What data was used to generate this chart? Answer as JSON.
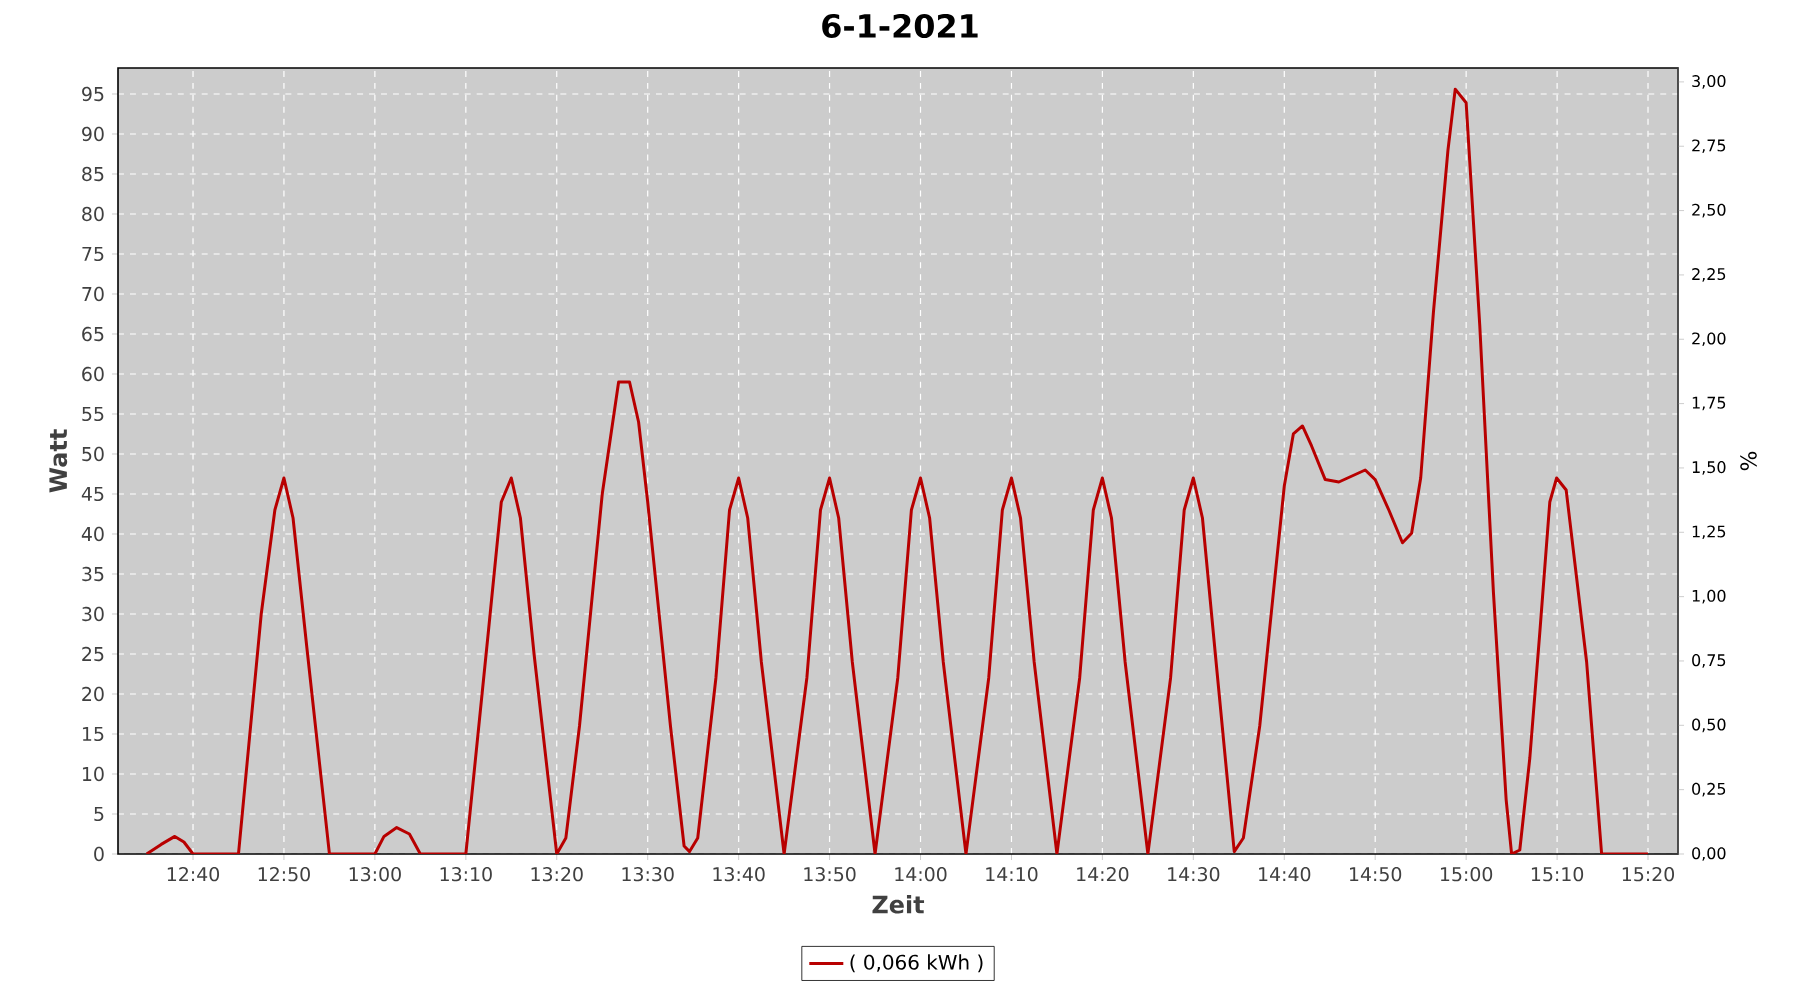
{
  "chart_data": {
    "type": "line",
    "title": "6-1-2021",
    "xlabel": "Zeit",
    "ylabel": "Watt",
    "y2label": "%",
    "x": [
      12.5817,
      12.6083,
      12.6333,
      12.65,
      12.6667,
      12.75,
      12.7917,
      12.8167,
      12.8333,
      12.85,
      12.875,
      12.9167,
      13.0,
      13.0167,
      13.04,
      13.0633,
      13.0833,
      13.1667,
      13.2083,
      13.2317,
      13.25,
      13.2667,
      13.2917,
      13.3333,
      13.35,
      13.375,
      13.4167,
      13.4467,
      13.4667,
      13.4833,
      13.5,
      13.5417,
      13.5667,
      13.5767,
      13.5917,
      13.625,
      13.65,
      13.6667,
      13.6833,
      13.7083,
      13.75,
      13.7917,
      13.8167,
      13.8333,
      13.85,
      13.875,
      13.9167,
      13.9583,
      13.9833,
      14.0,
      14.0167,
      14.0417,
      14.0833,
      14.125,
      14.15,
      14.1667,
      14.1833,
      14.2083,
      14.25,
      14.2917,
      14.3167,
      14.3333,
      14.35,
      14.375,
      14.4167,
      14.4583,
      14.4833,
      14.5,
      14.5167,
      14.5417,
      14.575,
      14.5917,
      14.6217,
      14.6667,
      14.6833,
      14.7,
      14.7167,
      14.7417,
      14.7667,
      14.815,
      14.8333,
      14.8583,
      14.8833,
      14.9,
      14.9167,
      14.94,
      14.9667,
      14.98,
      15.0,
      15.025,
      15.05,
      15.0733,
      15.0833,
      15.0983,
      15.1167,
      15.135,
      15.1533,
      15.1658,
      15.1833,
      15.2208,
      15.2483,
      15.3333
    ],
    "series": [
      {
        "name": "( 0,066 kWh )",
        "color": "#b80000",
        "values": [
          0,
          1.2,
          2.2,
          1.5,
          0,
          0,
          30,
          43,
          47,
          42,
          26,
          0,
          0,
          2.2,
          3.3,
          2.5,
          0,
          0,
          28,
          44,
          47,
          42,
          25,
          0,
          2,
          16,
          45,
          59,
          59,
          54,
          44,
          16,
          1,
          0.3,
          2,
          22,
          43,
          47,
          42,
          24,
          0,
          22,
          43,
          47,
          42,
          24,
          0,
          22,
          43,
          47,
          42,
          24,
          0,
          22,
          43,
          47,
          42,
          24,
          0,
          22,
          43,
          47,
          42,
          24,
          0,
          22,
          43,
          47,
          42,
          24,
          0.3,
          2,
          16,
          46,
          52.5,
          53.5,
          51,
          46.8,
          46.5,
          48,
          46.8,
          43,
          38.9,
          40.1,
          47,
          67.7,
          88,
          95.6,
          93.9,
          66,
          32.7,
          6.8,
          0,
          0.5,
          12,
          27.7,
          44,
          47,
          45.5,
          24,
          0,
          0
        ]
      }
    ],
    "xlim": [
      12.5292,
      15.3883
    ],
    "xticks": [
      {
        "value": 12.6667,
        "label": "12:40"
      },
      {
        "value": 12.8333,
        "label": "12:50"
      },
      {
        "value": 13.0,
        "label": "13:00"
      },
      {
        "value": 13.1667,
        "label": "13:10"
      },
      {
        "value": 13.3333,
        "label": "13:20"
      },
      {
        "value": 13.5,
        "label": "13:30"
      },
      {
        "value": 13.6667,
        "label": "13:40"
      },
      {
        "value": 13.8333,
        "label": "13:50"
      },
      {
        "value": 14.0,
        "label": "14:00"
      },
      {
        "value": 14.1667,
        "label": "14:10"
      },
      {
        "value": 14.3333,
        "label": "14:20"
      },
      {
        "value": 14.5,
        "label": "14:30"
      },
      {
        "value": 14.6667,
        "label": "14:40"
      },
      {
        "value": 14.8333,
        "label": "14:50"
      },
      {
        "value": 15.0,
        "label": "15:00"
      },
      {
        "value": 15.1667,
        "label": "15:10"
      },
      {
        "value": 15.3333,
        "label": "15:20"
      }
    ],
    "ylim": [
      0,
      98.25
    ],
    "yticks": [
      0,
      5,
      10,
      15,
      20,
      25,
      30,
      35,
      40,
      45,
      50,
      55,
      60,
      65,
      70,
      75,
      80,
      85,
      90,
      95
    ],
    "y2lim": [
      0,
      3.054
    ],
    "y2ticks": [
      {
        "value": 0,
        "label": "0,00"
      },
      {
        "value": 0.25,
        "label": "0,25"
      },
      {
        "value": 0.5,
        "label": "0,50"
      },
      {
        "value": 0.75,
        "label": "0,75"
      },
      {
        "value": 1.0,
        "label": "1,00"
      },
      {
        "value": 1.25,
        "label": "1,25"
      },
      {
        "value": 1.5,
        "label": "1,50"
      },
      {
        "value": 1.75,
        "label": "1,75"
      },
      {
        "value": 2.0,
        "label": "2,00"
      },
      {
        "value": 2.25,
        "label": "2,25"
      },
      {
        "value": 2.5,
        "label": "2,50"
      },
      {
        "value": 2.75,
        "label": "2,75"
      },
      {
        "value": 3.0,
        "label": "3,00"
      }
    ],
    "grid": true,
    "legend": "bottom",
    "marker": "none",
    "line_style": "solid"
  }
}
